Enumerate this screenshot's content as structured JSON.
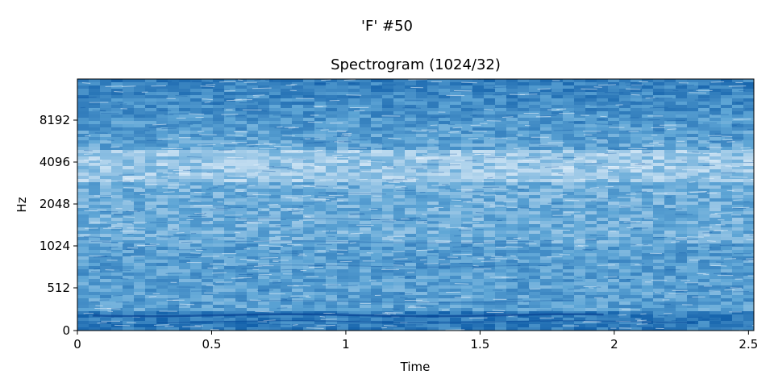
{
  "figure": {
    "suptitle": "'F' #50"
  },
  "chart_data": {
    "type": "heatmap",
    "title": "Spectrogram (1024/32)",
    "xlabel": "Time",
    "ylabel": "Hz",
    "xlim": [
      0,
      2.52
    ],
    "y_scale": "symlog",
    "x_ticks": [
      {
        "value": 0,
        "label": "0"
      },
      {
        "value": 0.5,
        "label": "0.5"
      },
      {
        "value": 1,
        "label": "1"
      },
      {
        "value": 1.5,
        "label": "1.5"
      },
      {
        "value": 2,
        "label": "2"
      },
      {
        "value": 2.5,
        "label": "2.5"
      }
    ],
    "y_ticks": [
      {
        "value": 0,
        "label": "0"
      },
      {
        "value": 512,
        "label": "512"
      },
      {
        "value": 1024,
        "label": "1024"
      },
      {
        "value": 2048,
        "label": "2048"
      },
      {
        "value": 4096,
        "label": "4096"
      },
      {
        "value": 8192,
        "label": "8192"
      }
    ],
    "colormap": {
      "low": "#e8f2fb",
      "mid": "#5fa6d6",
      "high": "#0b5aa6"
    },
    "grid": false,
    "legend": "none"
  }
}
